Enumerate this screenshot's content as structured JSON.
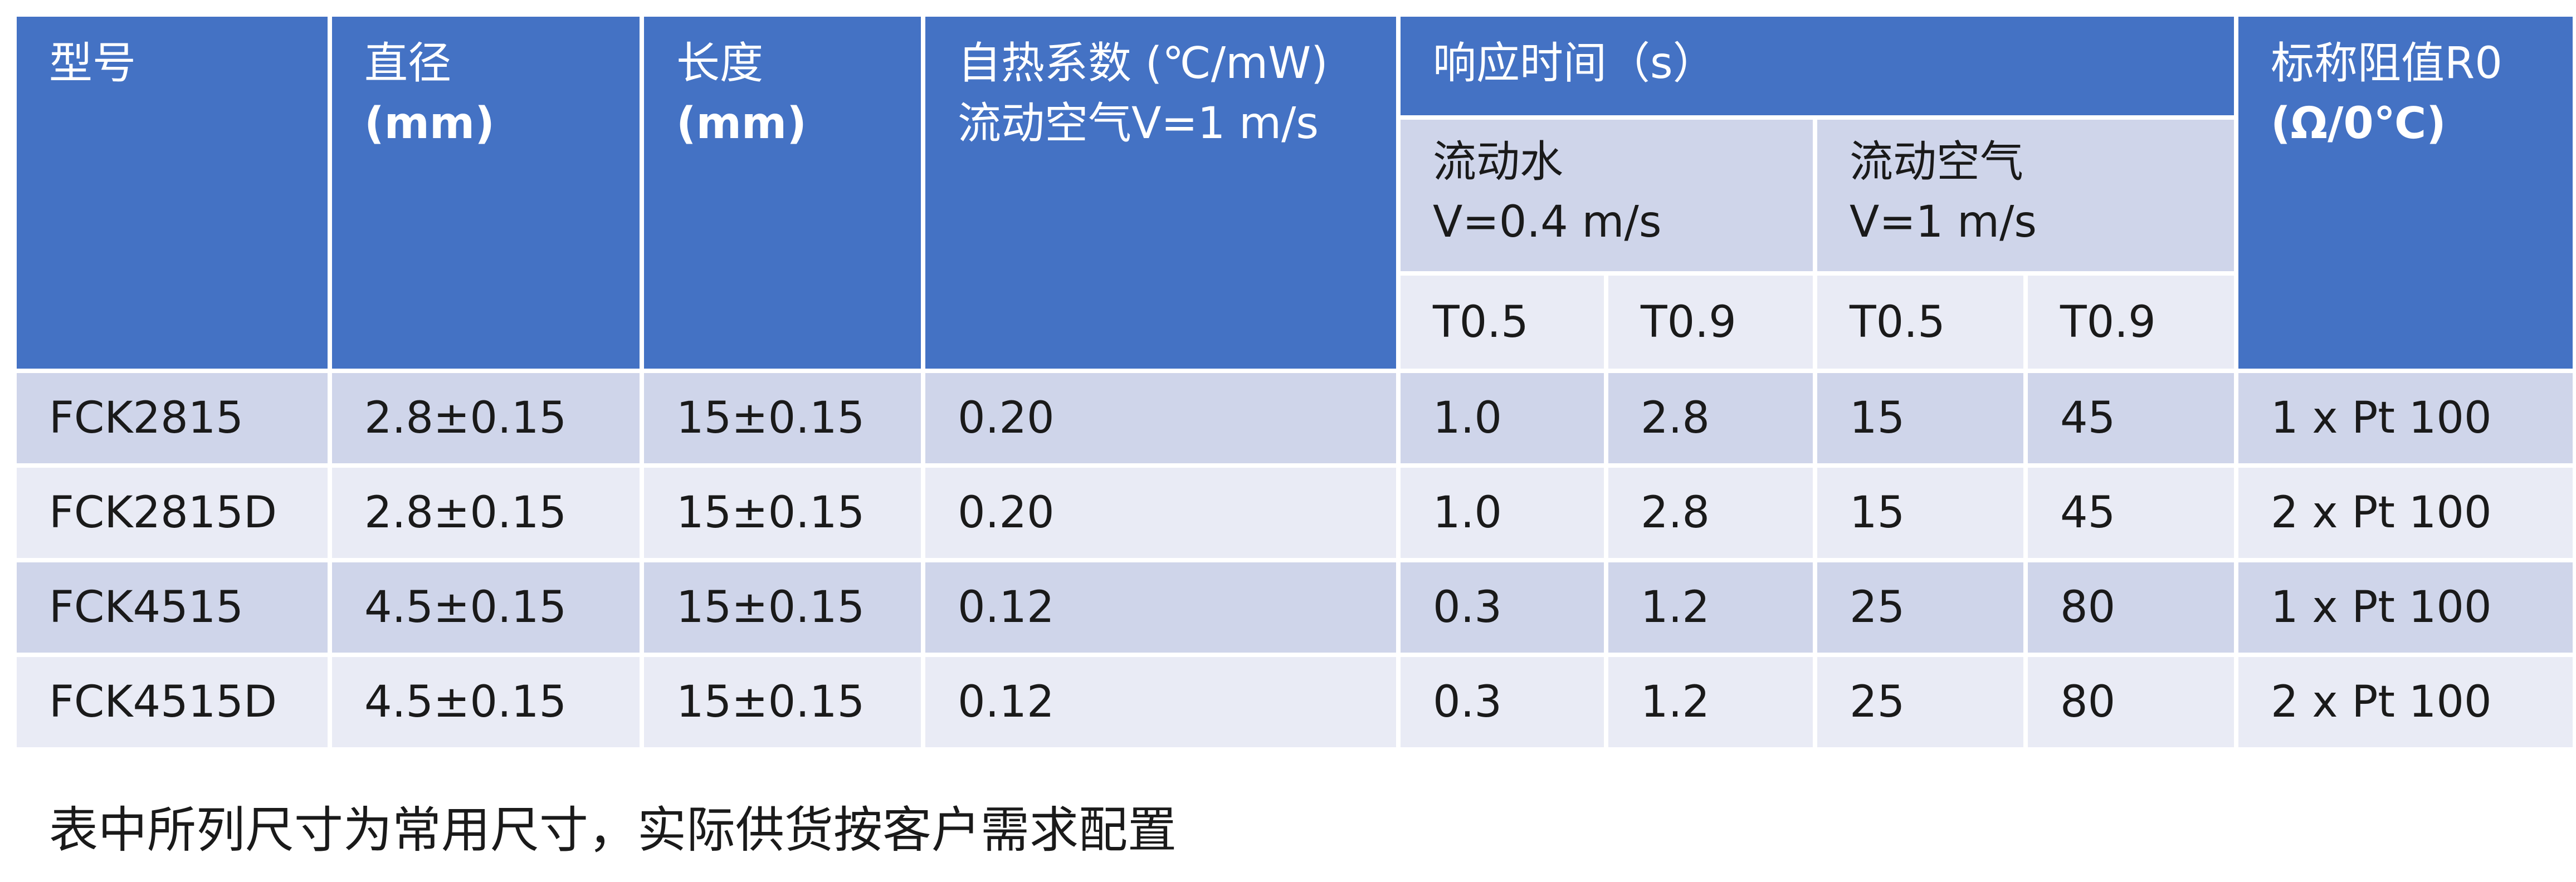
{
  "table": {
    "headers": {
      "model": "型号",
      "diameter": [
        "直径",
        "(mm)"
      ],
      "length": [
        "长度",
        "(mm)"
      ],
      "self_heating": [
        "自热系数 (℃/mW)",
        "流动空气V=1 m/s"
      ],
      "response_time": "响应时间（s）",
      "water_group": [
        "流动水",
        "V=0.4 m/s"
      ],
      "air_group": [
        "流动空气",
        "V=1 m/s"
      ],
      "t05": "T0.5",
      "t09": "T0.9",
      "nominal": [
        "标称阻值R0",
        "(Ω/0℃)"
      ]
    },
    "rows": [
      {
        "model": "FCK2815",
        "diameter": "2.8±0.15",
        "length": "15±0.15",
        "self_heating": "0.20",
        "water_t05": "1.0",
        "water_t09": "2.8",
        "air_t05": "15",
        "air_t09": "45",
        "nominal": "1 x Pt 100"
      },
      {
        "model": "FCK2815D",
        "diameter": "2.8±0.15",
        "length": "15±0.15",
        "self_heating": "0.20",
        "water_t05": "1.0",
        "water_t09": "2.8",
        "air_t05": "15",
        "air_t09": "45",
        "nominal": "2 x Pt 100"
      },
      {
        "model": "FCK4515",
        "diameter": "4.5±0.15",
        "length": "15±0.15",
        "self_heating": "0.12",
        "water_t05": "0.3",
        "water_t09": "1.2",
        "air_t05": "25",
        "air_t09": "80",
        "nominal": "1 x Pt 100"
      },
      {
        "model": "FCK4515D",
        "diameter": "4.5±0.15",
        "length": "15±0.15",
        "self_heating": "0.12",
        "water_t05": "0.3",
        "water_t09": "1.2",
        "air_t05": "25",
        "air_t09": "80",
        "nominal": "2 x Pt 100"
      }
    ]
  },
  "footnote": "表中所列尺寸为常用尺寸，实际供货按客户需求配置",
  "colors": {
    "header_blue": "#4472c4",
    "row_dark": "#cfd5ea",
    "row_light": "#e9ebf5"
  }
}
